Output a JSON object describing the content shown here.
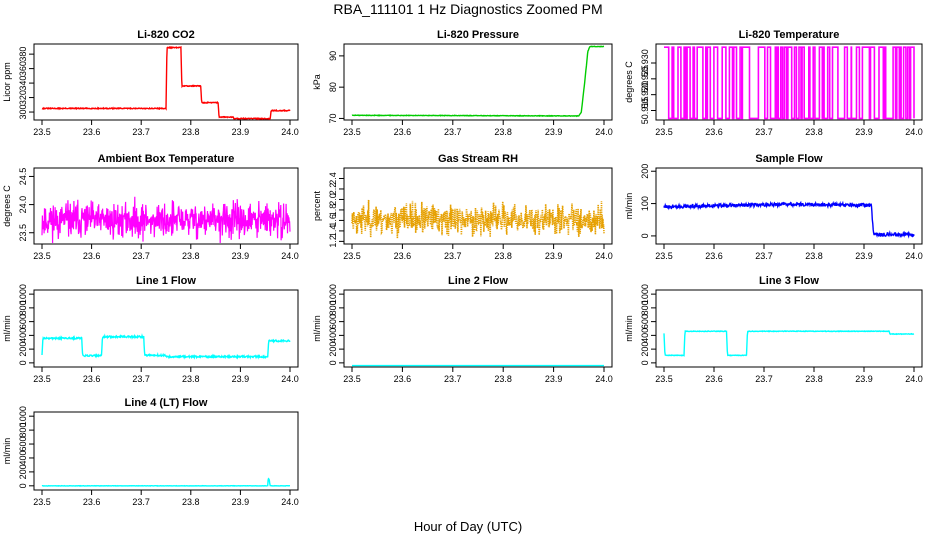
{
  "figure": {
    "title": "RBA_111101  1 Hz Diagnostics Zoomed PM",
    "xlabel": "Hour of Day (UTC)"
  },
  "chart_data": [
    {
      "type": "line",
      "title": "Li-820 CO2",
      "ylabel": "Licor ppm",
      "color": "#ff0000",
      "xlim": [
        23.5,
        24.0
      ],
      "xticks": [
        "23.5",
        "23.6",
        "23.7",
        "23.8",
        "23.9",
        "24.0"
      ],
      "ylim": [
        289,
        394
      ],
      "yticks": [
        300,
        320,
        340,
        360,
        380
      ],
      "noise": 0.6,
      "x": [
        23.5,
        23.75,
        23.752,
        23.78,
        23.782,
        23.82,
        23.822,
        23.855,
        23.857,
        23.885,
        23.887,
        23.96,
        23.962,
        24.0
      ],
      "y": [
        305,
        305,
        389,
        389,
        336,
        336,
        313,
        313,
        293,
        293,
        291,
        291,
        302,
        302
      ]
    },
    {
      "type": "line",
      "title": "Li-820 Pressure",
      "ylabel": "kPa",
      "color": "#00cc00",
      "xlim": [
        23.5,
        24.0
      ],
      "xticks": [
        "23.5",
        "23.6",
        "23.7",
        "23.8",
        "23.9",
        "24.0"
      ],
      "ylim": [
        69.5,
        93.8
      ],
      "yticks": [
        70,
        80,
        90
      ],
      "noise": 0.08,
      "x": [
        23.5,
        23.95,
        23.955,
        23.962,
        23.968,
        23.972,
        24.0
      ],
      "y": [
        71.0,
        70.8,
        72.0,
        82.0,
        91.5,
        93.0,
        93.0
      ]
    },
    {
      "type": "binary",
      "title": "Li-820 Temperature",
      "ylabel": "degrees C",
      "color": "#ff00ff",
      "xlim": [
        23.5,
        24.0
      ],
      "xticks": [
        "23.5",
        "23.6",
        "23.7",
        "23.8",
        "23.9",
        "24.0"
      ],
      "ylim": [
        50.912,
        50.936
      ],
      "yticks": [
        "50.915",
        "50.920",
        "50.925",
        "50.930"
      ],
      "levels": [
        50.9125,
        50.935
      ],
      "flips": 150,
      "seed": 7
    },
    {
      "type": "noise",
      "title": "Ambient Box Temperature",
      "ylabel": "degrees C",
      "color": "#ff00ff",
      "xlim": [
        23.5,
        24.0
      ],
      "xticks": [
        "23.5",
        "23.6",
        "23.7",
        "23.8",
        "23.9",
        "24.0"
      ],
      "ylim": [
        23.3,
        24.65
      ],
      "yticks": [
        "23.5",
        "24.0",
        "24.5"
      ],
      "mean": 23.72,
      "amplitude": 0.42,
      "spread": 0.52,
      "seed": 11
    },
    {
      "type": "noise",
      "title": "Gas Stream RH",
      "ylabel": "percent",
      "color": "#e6a000",
      "xlim": [
        23.5,
        24.0
      ],
      "xticks": [
        "23.5",
        "23.6",
        "23.7",
        "23.8",
        "23.9",
        "24.0"
      ],
      "ylim": [
        1.15,
        2.6
      ],
      "yticks": [
        "1.2",
        "1.4",
        "1.6",
        "1.8",
        "2.0",
        "2.2",
        "2.4"
      ],
      "mean": 1.62,
      "amplitude": 0.36,
      "spread": 0.55,
      "dotted": true,
      "seed": 23
    },
    {
      "type": "line",
      "title": "Sample Flow",
      "ylabel": "ml/min",
      "color": "#0000ff",
      "xlim": [
        23.5,
        24.0
      ],
      "xticks": [
        "23.5",
        "23.6",
        "23.7",
        "23.8",
        "23.9",
        "24.0"
      ],
      "ylim": [
        -25,
        210
      ],
      "yticks": [
        0,
        100,
        200
      ],
      "noise": 5.5,
      "x": [
        23.5,
        23.65,
        23.75,
        23.85,
        23.915,
        23.918,
        23.92,
        24.0
      ],
      "y": [
        90,
        95,
        98,
        96,
        95,
        20,
        5,
        3
      ]
    },
    {
      "type": "line",
      "title": "Line 1 Flow",
      "ylabel": "ml/min",
      "color": "#00ffff",
      "xlim": [
        23.5,
        24.0
      ],
      "xticks": [
        "23.5",
        "23.6",
        "23.7",
        "23.8",
        "23.9",
        "24.0"
      ],
      "ylim": [
        -60,
        1060
      ],
      "yticks": [
        0,
        200,
        400,
        600,
        800,
        1000
      ],
      "noise": 12,
      "x": [
        23.5,
        23.502,
        23.58,
        23.582,
        23.62,
        23.622,
        23.705,
        23.707,
        23.75,
        23.752,
        23.955,
        23.957,
        24.0
      ],
      "y": [
        120,
        360,
        360,
        105,
        105,
        380,
        380,
        110,
        110,
        90,
        90,
        320,
        320
      ]
    },
    {
      "type": "line",
      "title": "Line 2 Flow",
      "ylabel": "ml/min",
      "color": "#00ffff",
      "xlim": [
        23.5,
        24.0
      ],
      "xticks": [
        "23.5",
        "23.6",
        "23.7",
        "23.8",
        "23.9",
        "24.0"
      ],
      "ylim": [
        -60,
        1060
      ],
      "yticks": [
        0,
        200,
        400,
        600,
        800,
        1000
      ],
      "noise": 0,
      "x": [
        23.5,
        24.0
      ],
      "y": [
        -40,
        -40
      ]
    },
    {
      "type": "line",
      "title": "Line 3 Flow",
      "ylabel": "ml/min",
      "color": "#00ffff",
      "xlim": [
        23.5,
        24.0
      ],
      "xticks": [
        "23.5",
        "23.6",
        "23.7",
        "23.8",
        "23.9",
        "24.0"
      ],
      "ylim": [
        -60,
        1060
      ],
      "yticks": [
        0,
        200,
        400,
        600,
        800,
        1000
      ],
      "noise": 4,
      "x": [
        23.5,
        23.502,
        23.54,
        23.542,
        23.625,
        23.627,
        23.665,
        23.667,
        23.95,
        23.952,
        24.0
      ],
      "y": [
        430,
        110,
        110,
        460,
        460,
        110,
        110,
        460,
        460,
        420,
        420
      ]
    },
    {
      "type": "line",
      "title": "Line 4 (LT) Flow",
      "ylabel": "ml/min",
      "color": "#00ffff",
      "xlim": [
        23.5,
        24.0
      ],
      "xticks": [
        "23.5",
        "23.6",
        "23.7",
        "23.8",
        "23.9",
        "24.0"
      ],
      "ylim": [
        -60,
        1060
      ],
      "yticks": [
        0,
        200,
        400,
        600,
        800,
        1000
      ],
      "noise": 2,
      "x": [
        23.5,
        23.955,
        23.956,
        23.958,
        23.96,
        24.0
      ],
      "y": [
        0,
        0,
        100,
        100,
        0,
        0
      ]
    }
  ]
}
